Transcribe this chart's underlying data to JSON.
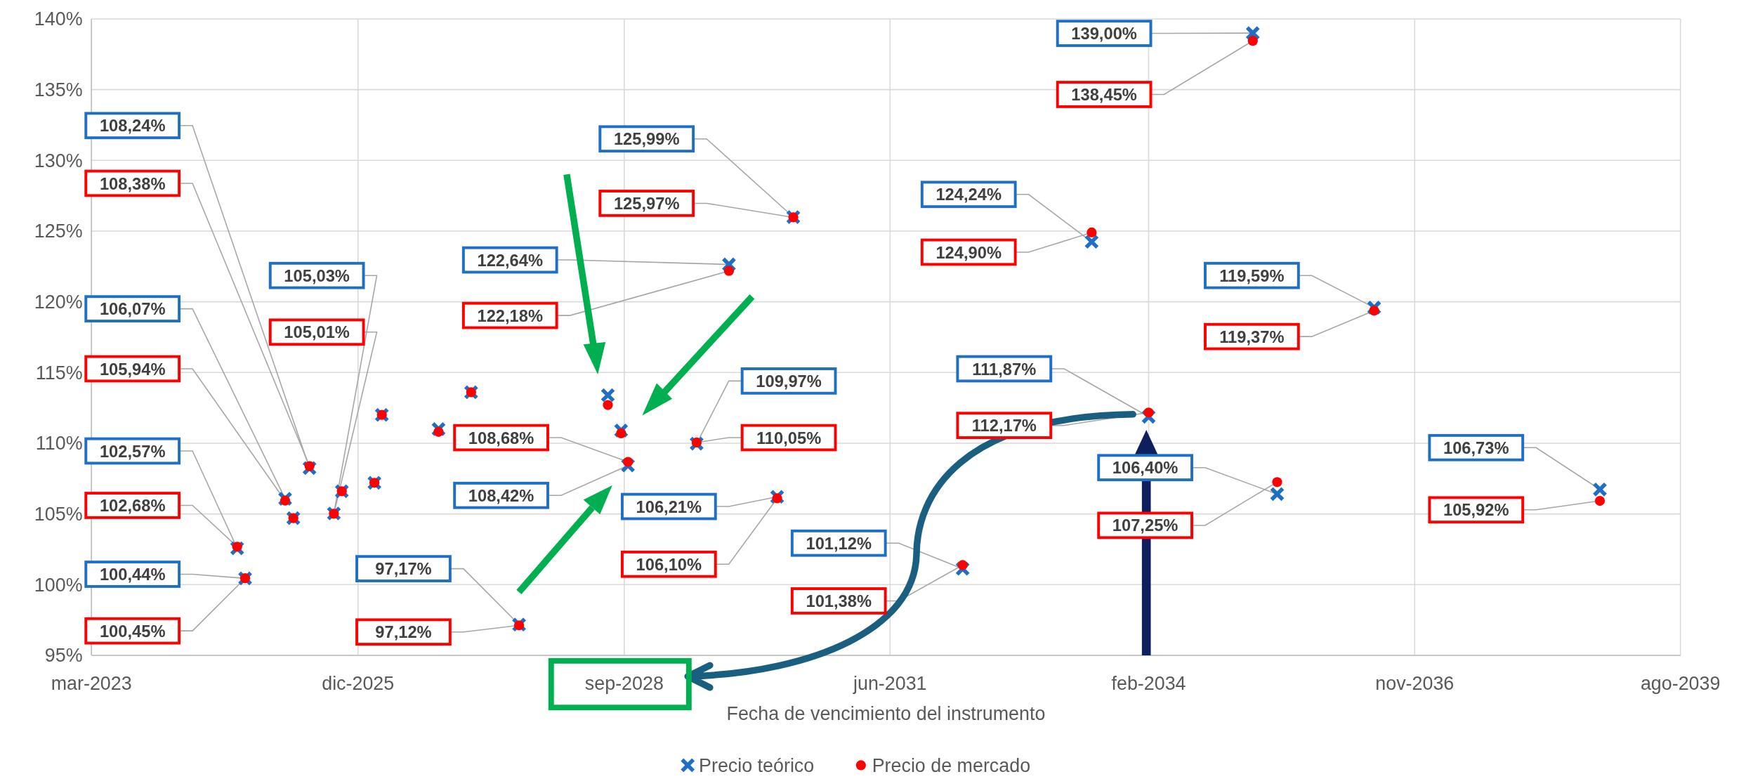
{
  "chart_data": {
    "type": "scatter",
    "xlabel": "Fecha de vencimiento del instrumento",
    "x": [
      "2024-09",
      "2024-10",
      "2025-03",
      "2025-04",
      "2025-06",
      "2025-09",
      "2025-10",
      "2026-02",
      "2026-03",
      "2026-10",
      "2027-02",
      "2027-08",
      "2028-07",
      "2028-08-20",
      "2028-09-15",
      "2029-06",
      "2029-10",
      "2030-04",
      "2030-06",
      "2032-03",
      "2033-07",
      "2034-02",
      "2035-03",
      "2035-06",
      "2036-06",
      "2038-10"
    ],
    "series": [
      {
        "name": "Precio teórico",
        "color": "#1f6fc5",
        "marker": "cross",
        "values": [
          102.57,
          100.44,
          106.07,
          104.7,
          108.24,
          105.03,
          106.6,
          107.2,
          112.0,
          111.0,
          113.6,
          97.17,
          113.4,
          110.9,
          108.42,
          109.97,
          122.64,
          106.21,
          125.99,
          101.12,
          124.24,
          111.87,
          139.0,
          106.4,
          119.59,
          106.73
        ],
        "value_labels": [
          "102,57%",
          "100,44%",
          "106,07%",
          null,
          "108,24%",
          "105,03%",
          null,
          null,
          null,
          null,
          null,
          "97,17%",
          null,
          null,
          "108,42%",
          "109,97%",
          "122,64%",
          "106,21%",
          "125,99%",
          "101,12%",
          "124,24%",
          "111,87%",
          "139,00%",
          "106,40%",
          "119,59%",
          "106,73%"
        ]
      },
      {
        "name": "Precio de mercado",
        "color": "#ff0000",
        "marker": "circle",
        "values": [
          102.68,
          100.45,
          105.94,
          104.7,
          108.38,
          105.01,
          106.6,
          107.2,
          112.0,
          110.8,
          113.6,
          97.12,
          112.7,
          110.7,
          108.68,
          110.05,
          122.18,
          106.1,
          125.97,
          101.38,
          124.9,
          112.17,
          138.45,
          107.25,
          119.37,
          105.92
        ],
        "value_labels": [
          "102,68%",
          "100,45%",
          "105,94%",
          null,
          "108,38%",
          "105,01%",
          null,
          null,
          null,
          null,
          null,
          "97,12%",
          null,
          null,
          "108,68%",
          "110,05%",
          "122,18%",
          "106,10%",
          "125,97%",
          "101,38%",
          "124,90%",
          "112,17%",
          "138,45%",
          "107,25%",
          "119,37%",
          "105,92%"
        ]
      }
    ],
    "xlim": [
      "2023-03",
      "2039-08"
    ],
    "xticks": [
      {
        "value": "2023-03",
        "label": "mar-2023"
      },
      {
        "value": "2025-12",
        "label": "dic-2025"
      },
      {
        "value": "2028-09",
        "label": "sep-2028"
      },
      {
        "value": "2031-06",
        "label": "jun-2031"
      },
      {
        "value": "2034-02",
        "label": "feb-2034"
      },
      {
        "value": "2036-11",
        "label": "nov-2036"
      },
      {
        "value": "2039-08",
        "label": "ago-2039"
      }
    ],
    "ylim": [
      95,
      140
    ],
    "yticks": [
      {
        "value": 95,
        "label": "95%"
      },
      {
        "value": 100,
        "label": "100%"
      },
      {
        "value": 105,
        "label": "105%"
      },
      {
        "value": 110,
        "label": "110%"
      },
      {
        "value": 115,
        "label": "115%"
      },
      {
        "value": 120,
        "label": "120%"
      },
      {
        "value": 125,
        "label": "125%"
      },
      {
        "value": 130,
        "label": "130%"
      },
      {
        "value": 135,
        "label": "135%"
      },
      {
        "value": 140,
        "label": "140%"
      }
    ],
    "grid": true,
    "legend": "bottom"
  }
}
